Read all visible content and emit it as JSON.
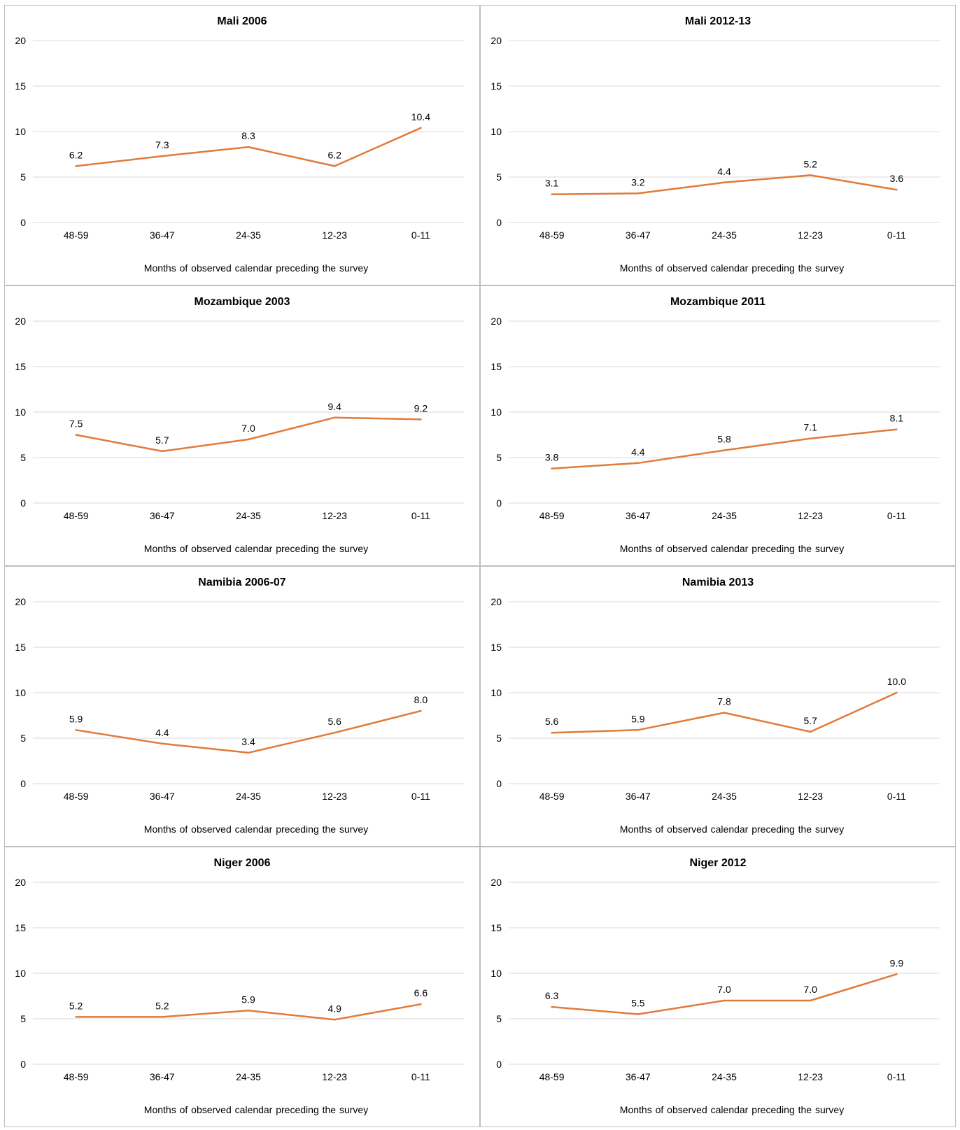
{
  "chart_data": [
    {
      "type": "line",
      "title": "Mali 2006",
      "xlabel": "Months of observed calendar preceding the survey",
      "ylabel": "",
      "categories": [
        "48-59",
        "36-47",
        "24-35",
        "12-23",
        "0-11"
      ],
      "values": [
        6.2,
        7.3,
        8.3,
        6.2,
        10.4
      ],
      "data_labels": [
        "6.2",
        "7.3",
        "8.3",
        "6.2",
        "10.4"
      ],
      "ylim": [
        0,
        20
      ],
      "yticks": [
        "0",
        "5",
        "10",
        "15",
        "20"
      ],
      "grid": true
    },
    {
      "type": "line",
      "title": "Mali 2012-13",
      "xlabel": "Months of observed calendar preceding the survey",
      "ylabel": "",
      "categories": [
        "48-59",
        "36-47",
        "24-35",
        "12-23",
        "0-11"
      ],
      "values": [
        3.1,
        3.2,
        4.4,
        5.2,
        3.6
      ],
      "data_labels": [
        "3.1",
        "3.2",
        "4.4",
        "5.2",
        "3.6"
      ],
      "ylim": [
        0,
        20
      ],
      "yticks": [
        "0",
        "5",
        "10",
        "15",
        "20"
      ],
      "grid": true
    },
    {
      "type": "line",
      "title": "Mozambique 2003",
      "xlabel": "Months of observed calendar preceding the survey",
      "ylabel": "",
      "categories": [
        "48-59",
        "36-47",
        "24-35",
        "12-23",
        "0-11"
      ],
      "values": [
        7.5,
        5.7,
        7.0,
        9.4,
        9.2
      ],
      "data_labels": [
        "7.5",
        "5.7",
        "7.0",
        "9.4",
        "9.2"
      ],
      "ylim": [
        0,
        20
      ],
      "yticks": [
        "0",
        "5",
        "10",
        "15",
        "20"
      ],
      "grid": true
    },
    {
      "type": "line",
      "title": "Mozambique 2011",
      "xlabel": "Months of observed calendar preceding the survey",
      "ylabel": "",
      "categories": [
        "48-59",
        "36-47",
        "24-35",
        "12-23",
        "0-11"
      ],
      "values": [
        3.8,
        4.4,
        5.8,
        7.1,
        8.1
      ],
      "data_labels": [
        "3.8",
        "4.4",
        "5.8",
        "7.1",
        "8.1"
      ],
      "ylim": [
        0,
        20
      ],
      "yticks": [
        "0",
        "5",
        "10",
        "15",
        "20"
      ],
      "grid": true
    },
    {
      "type": "line",
      "title": "Namibia 2006-07",
      "xlabel": "Months of observed calendar preceding the survey",
      "ylabel": "",
      "categories": [
        "48-59",
        "36-47",
        "24-35",
        "12-23",
        "0-11"
      ],
      "values": [
        5.9,
        4.4,
        3.4,
        5.6,
        8.0
      ],
      "data_labels": [
        "5.9",
        "4.4",
        "3.4",
        "5.6",
        "8.0"
      ],
      "ylim": [
        0,
        20
      ],
      "yticks": [
        "0",
        "5",
        "10",
        "15",
        "20"
      ],
      "grid": true
    },
    {
      "type": "line",
      "title": "Namibia 2013",
      "xlabel": "Months of observed calendar preceding the survey",
      "ylabel": "",
      "categories": [
        "48-59",
        "36-47",
        "24-35",
        "12-23",
        "0-11"
      ],
      "values": [
        5.6,
        5.9,
        7.8,
        5.7,
        10.0
      ],
      "data_labels": [
        "5.6",
        "5.9",
        "7.8",
        "5.7",
        "10.0"
      ],
      "ylim": [
        0,
        20
      ],
      "yticks": [
        "0",
        "5",
        "10",
        "15",
        "20"
      ],
      "grid": true
    },
    {
      "type": "line",
      "title": "Niger 2006",
      "xlabel": "Months of observed calendar preceding the survey",
      "ylabel": "",
      "categories": [
        "48-59",
        "36-47",
        "24-35",
        "12-23",
        "0-11"
      ],
      "values": [
        5.2,
        5.2,
        5.9,
        4.9,
        6.6
      ],
      "data_labels": [
        "5.2",
        "5.2",
        "5.9",
        "4.9",
        "6.6"
      ],
      "ylim": [
        0,
        20
      ],
      "yticks": [
        "0",
        "5",
        "10",
        "15",
        "20"
      ],
      "grid": true
    },
    {
      "type": "line",
      "title": "Niger 2012",
      "xlabel": "Months of observed calendar preceding the survey",
      "ylabel": "",
      "categories": [
        "48-59",
        "36-47",
        "24-35",
        "12-23",
        "0-11"
      ],
      "values": [
        6.3,
        5.5,
        7.0,
        7.0,
        9.9
      ],
      "data_labels": [
        "6.3",
        "5.5",
        "7.0",
        "7.0",
        "9.9"
      ],
      "ylim": [
        0,
        20
      ],
      "yticks": [
        "0",
        "5",
        "10",
        "15",
        "20"
      ],
      "grid": true
    }
  ],
  "style": {
    "line_color": "#e07b39",
    "grid_color": "#d9d9d9",
    "border_color": "#bfbfbf",
    "text_color": "#000000"
  }
}
